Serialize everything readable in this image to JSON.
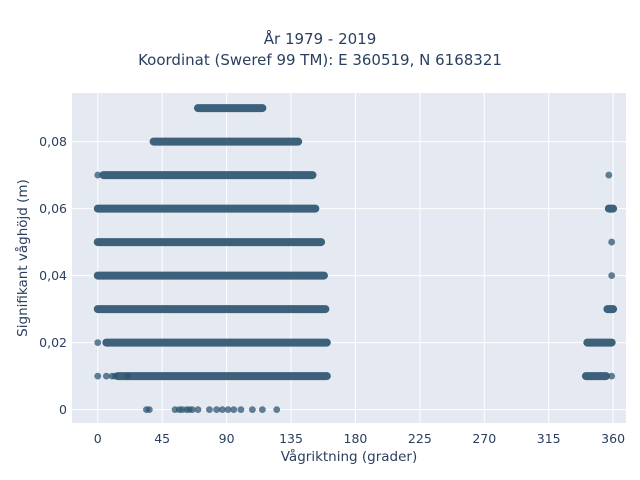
{
  "chart_data": {
    "type": "scatter",
    "title": "År 1979 - 2019",
    "subtitle": "Koordinat (Sweref 99 TM): E 360519, N 6168321",
    "xlabel": "Vågriktning (grader)",
    "ylabel": "Signifikant våghöjd (m)",
    "xlim": [
      -18,
      369
    ],
    "ylim": [
      -0.004,
      0.0945
    ],
    "xticks": [
      0,
      45,
      90,
      135,
      180,
      225,
      270,
      315,
      360
    ],
    "yticks": [
      0,
      0.02,
      0.04,
      0.06,
      0.08
    ],
    "ytick_labels": [
      "0",
      "0,02",
      "0,04",
      "0,06",
      "0,08"
    ],
    "grid": true,
    "marker_color": "#2f5571",
    "plot_bg": "#e5e9f2",
    "bands": [
      {
        "y": 0.09,
        "x": [
          70,
          115
        ]
      },
      {
        "y": 0.08,
        "x": [
          39,
          140
        ]
      },
      {
        "y": 0.07,
        "x": [
          4,
          150
        ]
      },
      {
        "y": 0.06,
        "x": [
          0,
          152
        ]
      },
      {
        "y": 0.05,
        "x": [
          0,
          156
        ]
      },
      {
        "y": 0.04,
        "x": [
          0,
          158
        ]
      },
      {
        "y": 0.03,
        "x": [
          0,
          159
        ]
      },
      {
        "y": 0.02,
        "x": [
          6,
          160
        ]
      },
      {
        "y": 0.01,
        "x": [
          14,
          160
        ]
      },
      {
        "y": 0.02,
        "x": [
          342,
          359
        ]
      },
      {
        "y": 0.01,
        "x": [
          341,
          355
        ]
      },
      {
        "y": 0.03,
        "x": [
          356,
          360
        ]
      },
      {
        "y": 0.06,
        "x": [
          357,
          360
        ]
      }
    ],
    "points": [
      {
        "x": 0,
        "y": 0.07
      },
      {
        "x": 0,
        "y": 0.02
      },
      {
        "x": 0,
        "y": 0.01
      },
      {
        "x": 6,
        "y": 0.01
      },
      {
        "x": 10,
        "y": 0.01
      },
      {
        "x": 12,
        "y": 0.01
      },
      {
        "x": 21,
        "y": 0.01
      },
      {
        "x": 34,
        "y": 0
      },
      {
        "x": 36,
        "y": 0
      },
      {
        "x": 54,
        "y": 0
      },
      {
        "x": 57,
        "y": 0
      },
      {
        "x": 59,
        "y": 0
      },
      {
        "x": 62,
        "y": 0
      },
      {
        "x": 64,
        "y": 0
      },
      {
        "x": 66,
        "y": 0
      },
      {
        "x": 70,
        "y": 0
      },
      {
        "x": 78,
        "y": 0
      },
      {
        "x": 83,
        "y": 0
      },
      {
        "x": 87,
        "y": 0
      },
      {
        "x": 91,
        "y": 0
      },
      {
        "x": 95,
        "y": 0
      },
      {
        "x": 100,
        "y": 0
      },
      {
        "x": 108,
        "y": 0
      },
      {
        "x": 115,
        "y": 0
      },
      {
        "x": 125,
        "y": 0
      },
      {
        "x": 357,
        "y": 0.07
      },
      {
        "x": 359,
        "y": 0.05
      },
      {
        "x": 359,
        "y": 0.04
      },
      {
        "x": 359,
        "y": 0.01
      }
    ]
  }
}
